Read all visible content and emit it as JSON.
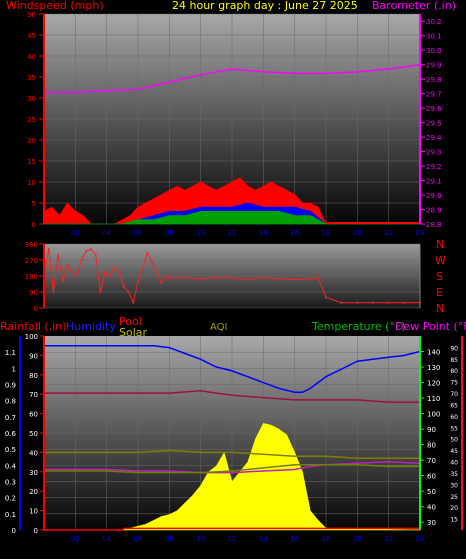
{
  "header": {
    "windspeed_label": "Windspeed (mph)",
    "title": "24 hour graph day : June 27 2025",
    "barometer_label": "Barometer (.in)"
  },
  "middle": {
    "compass": [
      "N",
      "W",
      "S",
      "E",
      "N"
    ]
  },
  "bottom": {
    "rainfall_label": "Rainfall (.in)",
    "humidity_label": "Humidity",
    "pool_label": "Pool",
    "solar_label": "Solar",
    "aqi_label": "AQI",
    "temperature_label": "Temperature (°F)",
    "dewpoint_label": "Dew Point (°F)"
  },
  "colors": {
    "windspeed": "#ff0000",
    "gust": "#ff2020",
    "avg_wind": "#0000ff",
    "min_wind": "#00a000",
    "barometer": "#ff00ff",
    "direction": "#ff2020",
    "humidity": "#0000ff",
    "solar": "#ffff00",
    "temperature": "#ff00ff",
    "dewpoint": "#ff0040",
    "aqi": "#808000",
    "temp_axis": "#00ff00"
  },
  "chart_data": [
    {
      "type": "area",
      "id": "wind_barometer",
      "x_ticks": [
        "02",
        "04",
        "06",
        "08",
        "10",
        "12",
        "14",
        "16",
        "18",
        "20",
        "22",
        "24"
      ],
      "y_left": {
        "label": "Windspeed (mph)",
        "ylim": [
          0,
          50
        ],
        "ticks": [
          0,
          5,
          10,
          15,
          20,
          25,
          30,
          35,
          40,
          45,
          50
        ]
      },
      "y_right": {
        "label": "Barometer (.in)",
        "ylim": [
          28.8,
          30.25
        ],
        "ticks": [
          28.8,
          28.9,
          29.0,
          29.1,
          29.2,
          29.3,
          29.4,
          29.5,
          29.6,
          29.7,
          29.8,
          29.9,
          30.0,
          30.1,
          30.2
        ]
      },
      "series": [
        {
          "name": "Barometer",
          "axis": "right",
          "x": [
            0,
            2,
            4,
            6,
            8,
            10,
            12,
            14,
            16,
            18,
            20,
            22,
            24
          ],
          "values": [
            29.71,
            29.71,
            29.72,
            29.73,
            29.78,
            29.83,
            29.87,
            29.85,
            29.84,
            29.84,
            29.85,
            29.87,
            29.9
          ]
        },
        {
          "name": "Windspeed",
          "axis": "left",
          "x": [
            0,
            0.5,
            1,
            1.5,
            2,
            2.5,
            3,
            3.5,
            4,
            4.5,
            5,
            5.5,
            6,
            6.5,
            7,
            7.5,
            8,
            8.5,
            9,
            9.5,
            10,
            10.5,
            11,
            11.5,
            12,
            12.5,
            13,
            13.5,
            14,
            14.5,
            15,
            15.5,
            16,
            16.5,
            17,
            17.5,
            18,
            18.5,
            19,
            20,
            21,
            22,
            23,
            24
          ],
          "values": [
            3,
            4,
            2,
            5,
            3,
            2,
            0,
            0,
            0,
            0,
            1,
            2,
            4,
            5,
            6,
            7,
            8,
            9,
            8,
            9,
            10,
            9,
            8,
            9,
            10,
            11,
            9,
            8,
            9,
            10,
            9,
            8,
            7,
            5,
            5,
            4,
            0,
            0,
            0,
            0,
            0,
            0,
            0,
            0
          ]
        },
        {
          "name": "Avg",
          "axis": "left",
          "x": [
            0,
            2,
            4,
            5,
            6,
            7,
            8,
            9,
            10,
            11,
            12,
            13,
            14,
            15,
            16,
            17,
            18,
            19,
            24
          ],
          "values": [
            0,
            0,
            0,
            0,
            1,
            2,
            3,
            3,
            4,
            4,
            4,
            5,
            4,
            4,
            4,
            3,
            0,
            0,
            0
          ]
        },
        {
          "name": "Min",
          "axis": "left",
          "x": [
            0,
            2,
            4,
            5,
            6,
            7,
            8,
            9,
            10,
            11,
            12,
            13,
            14,
            15,
            16,
            17,
            18,
            19,
            24
          ],
          "values": [
            0,
            0,
            0,
            0,
            1,
            1,
            2,
            2,
            3,
            3,
            3,
            3,
            3,
            3,
            2,
            2,
            0,
            0,
            0
          ]
        }
      ]
    },
    {
      "type": "scatter",
      "id": "wind_direction",
      "x_ticks": [],
      "y_left": {
        "ylim": [
          0,
          360
        ],
        "ticks": [
          0,
          90,
          180,
          270,
          360
        ]
      },
      "series": [
        {
          "name": "Direction",
          "x": [
            0,
            0.3,
            0.6,
            0.9,
            1.2,
            1.5,
            1.8,
            2.1,
            2.4,
            2.7,
            3,
            3.3,
            3.6,
            3.9,
            4.2,
            4.5,
            4.8,
            5.1,
            5.4,
            5.7,
            6,
            6.3,
            6.6,
            6.9,
            7.2,
            7.5,
            7.8,
            8,
            9,
            10,
            11,
            12,
            13,
            14,
            15,
            16,
            17,
            17.5,
            18,
            19,
            20,
            21,
            22,
            23,
            24
          ],
          "values": [
            180,
            330,
            90,
            300,
            150,
            240,
            200,
            180,
            270,
            320,
            330,
            300,
            90,
            200,
            180,
            230,
            200,
            120,
            90,
            30,
            150,
            220,
            310,
            260,
            200,
            140,
            180,
            170,
            170,
            165,
            170,
            170,
            160,
            170,
            165,
            160,
            165,
            170,
            60,
            30,
            30,
            30,
            30,
            30,
            30
          ]
        }
      ]
    },
    {
      "type": "line",
      "id": "rain_humidity_temp",
      "x_ticks": [
        "02",
        "04",
        "06",
        "08",
        "10",
        "12",
        "14",
        "16",
        "18",
        "20",
        "22",
        "24"
      ],
      "y_far_left": {
        "label": "Rainfall (.in)",
        "ylim": [
          0,
          1.2
        ],
        "ticks": [
          0,
          0.1,
          0.2,
          0.3,
          0.4,
          0.5,
          0.6,
          0.7,
          0.8,
          0.9,
          1,
          1.1
        ]
      },
      "y_left": {
        "label": "Humidity",
        "ylim": [
          0,
          100
        ],
        "ticks": [
          0,
          10,
          20,
          30,
          40,
          50,
          60,
          70,
          80,
          90,
          100
        ]
      },
      "y_right": {
        "label": "Temperature (°F)",
        "ylim": [
          25,
          150
        ],
        "ticks": [
          30,
          40,
          50,
          60,
          70,
          80,
          90,
          100,
          110,
          120,
          130,
          140
        ]
      },
      "y_far_right": {
        "label": "Dew Point (°F)",
        "ylim": [
          10,
          95
        ],
        "ticks": [
          15,
          20,
          25,
          30,
          35,
          40,
          45,
          50,
          55,
          60,
          65,
          70,
          75,
          80,
          85,
          90
        ]
      },
      "series": [
        {
          "name": "Humidity",
          "axis": "left",
          "x": [
            0,
            2,
            4,
            6,
            7,
            8,
            9,
            10,
            11,
            12,
            13,
            14,
            15,
            16,
            16.5,
            17,
            18,
            19,
            20,
            21,
            22,
            23,
            24
          ],
          "values": [
            95,
            95,
            95,
            95,
            95,
            94,
            91,
            88,
            84,
            82,
            79,
            76,
            73,
            71,
            71,
            73,
            79,
            83,
            87,
            88,
            89,
            90,
            92
          ]
        },
        {
          "name": "Dew Point",
          "axis": "far_right",
          "x": [
            0,
            2,
            4,
            6,
            8,
            10,
            11,
            12,
            14,
            16,
            18,
            20,
            22,
            24
          ],
          "values": [
            70,
            70,
            70,
            70,
            70,
            71,
            70,
            69,
            68,
            67,
            67,
            67,
            66,
            66
          ]
        },
        {
          "name": "AQI",
          "axis": "left",
          "x": [
            0,
            2,
            4,
            6,
            8,
            10,
            12,
            14,
            16,
            18,
            20,
            22,
            24
          ],
          "values": [
            40,
            40,
            40,
            40,
            41,
            40,
            40,
            39,
            38,
            38,
            37,
            37,
            37
          ]
        },
        {
          "name": "Temperature",
          "axis": "right",
          "x": [
            0,
            2,
            4,
            6,
            8,
            10,
            12,
            14,
            16,
            17,
            18,
            20,
            22,
            24
          ],
          "values": [
            64,
            64,
            64,
            63,
            63,
            62,
            62,
            63,
            64,
            66,
            67,
            68,
            69,
            68
          ]
        },
        {
          "name": "Temperature2",
          "axis": "right",
          "x": [
            0,
            2,
            4,
            6,
            8,
            10,
            12,
            14,
            16,
            18,
            20,
            22,
            24
          ],
          "values": [
            63,
            63,
            63,
            62,
            62,
            62,
            63,
            65,
            67,
            67,
            67,
            66,
            66
          ]
        },
        {
          "name": "Solar",
          "axis": "left",
          "x": [
            0,
            5,
            5.5,
            6,
            6.5,
            7,
            7.5,
            8,
            8.5,
            9,
            9.5,
            10,
            10.5,
            11,
            11.5,
            12,
            12.5,
            13,
            13.5,
            14,
            14.5,
            15,
            15.5,
            16,
            16.5,
            17,
            17.5,
            18,
            24
          ],
          "values": [
            0,
            0,
            1,
            2,
            3,
            5,
            7,
            8,
            10,
            14,
            18,
            23,
            30,
            33,
            40,
            25,
            30,
            35,
            47,
            55,
            54,
            52,
            49,
            40,
            30,
            10,
            5,
            1,
            0
          ]
        },
        {
          "name": "Rainfall",
          "axis": "far_left",
          "x": [
            0,
            5,
            5.1,
            24
          ],
          "values": [
            0,
            0,
            0.01,
            0.01
          ]
        }
      ]
    }
  ]
}
